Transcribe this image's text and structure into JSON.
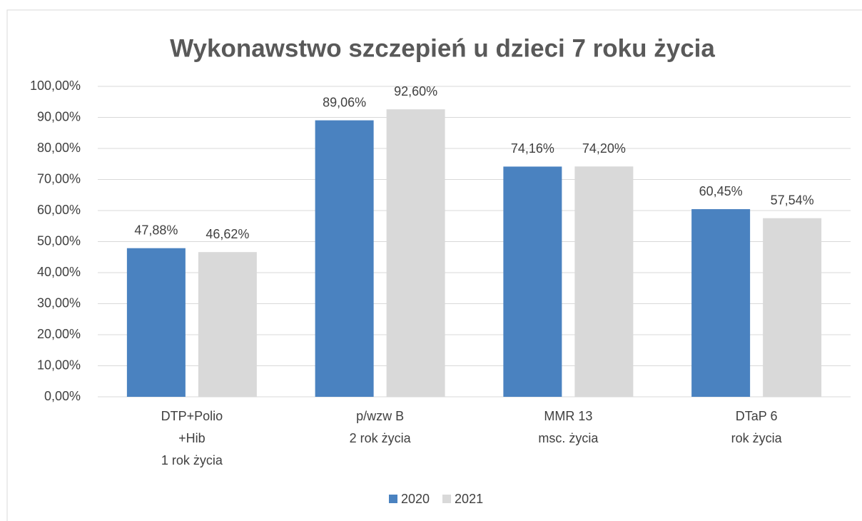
{
  "chart_data": {
    "type": "bar",
    "title": "Wykonawstwo szczepień u dzieci 7 roku życia",
    "categories": [
      [
        "DTP+Polio",
        "+Hib",
        "1 rok życia"
      ],
      [
        "p/wzw B",
        "2 rok życia"
      ],
      [
        "MMR 13",
        "msc. życia"
      ],
      [
        "DTaP 6",
        "rok życia"
      ]
    ],
    "series": [
      {
        "name": "2020",
        "color": "#4a82c0",
        "values": [
          47.88,
          89.06,
          74.16,
          60.45
        ],
        "value_labels": [
          "47,88%",
          "89,06%",
          "74,16%",
          "60,45%"
        ]
      },
      {
        "name": "2021",
        "color": "#d9d9d9",
        "values": [
          46.62,
          92.6,
          74.2,
          57.54
        ],
        "value_labels": [
          "46,62%",
          "92,60%",
          "74,20%",
          "57,54%"
        ]
      }
    ],
    "ylim": [
      0,
      100
    ],
    "yticks": [
      {
        "value": 0,
        "label": "0,00%"
      },
      {
        "value": 10,
        "label": "10,00%"
      },
      {
        "value": 20,
        "label": "20,00%"
      },
      {
        "value": 30,
        "label": "30,00%"
      },
      {
        "value": 40,
        "label": "40,00%"
      },
      {
        "value": 50,
        "label": "50,00%"
      },
      {
        "value": 60,
        "label": "60,00%"
      },
      {
        "value": 70,
        "label": "70,00%"
      },
      {
        "value": 80,
        "label": "80,00%"
      },
      {
        "value": 90,
        "label": "90,00%"
      },
      {
        "value": 100,
        "label": "100,00%"
      }
    ],
    "grid": true,
    "legend": "bottom"
  }
}
